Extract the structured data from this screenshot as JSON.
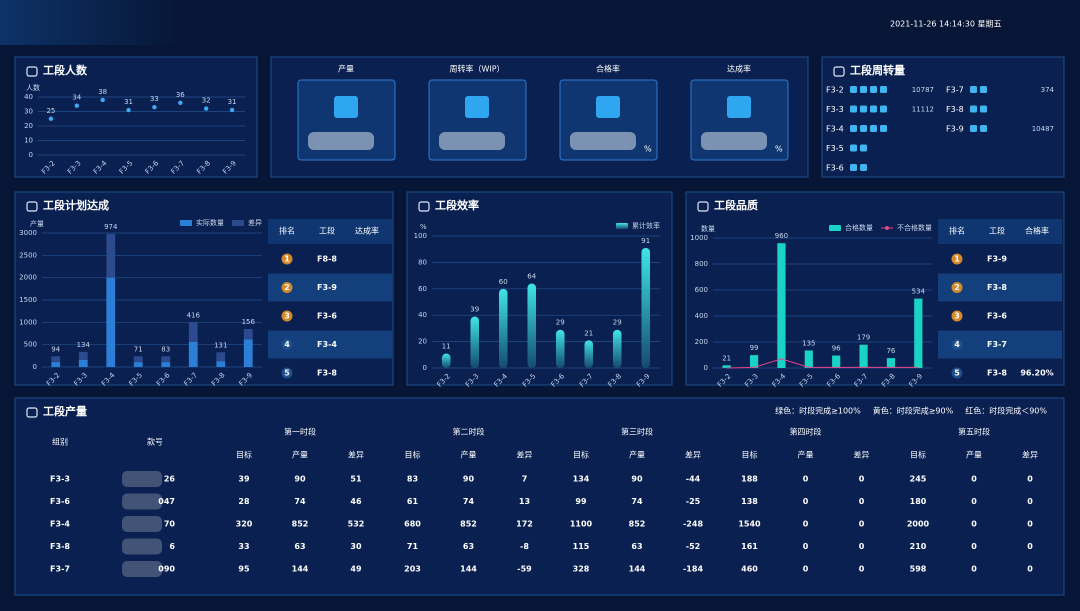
{
  "header": {
    "datetime": "2021-11-26 14:14:30 星期五"
  },
  "chart_data": [
    {
      "type": "dot",
      "title": "工段人数",
      "ylabel": "人数",
      "categories": [
        "F3-2",
        "F3-3",
        "F3-4",
        "F3-5",
        "F3-6",
        "F3-7",
        "F3-8",
        "F3-9"
      ],
      "values": [
        25,
        34,
        38,
        31,
        33,
        36,
        32,
        31
      ],
      "color": "#3fa9f5",
      "ylim": [
        0,
        40
      ],
      "yticks": [
        0,
        10,
        20,
        30,
        40
      ],
      "grid": true
    },
    {
      "type": "bar",
      "title": "工段计划达成",
      "ylabel": "产量",
      "stacked": true,
      "categories": [
        "F3-2",
        "F3-3",
        "F3-4",
        "F3-5",
        "F3-6",
        "F3-7",
        "F3-8",
        "F3-9"
      ],
      "series": [
        {
          "name": "实际数量",
          "color": "#2b7fd6",
          "values": [
            110,
            160,
            2000,
            110,
            110,
            560,
            130,
            620
          ]
        },
        {
          "name": "差异",
          "color": "#2c4b8e",
          "values": [
            130,
            180,
            980,
            130,
            130,
            440,
            200,
            230
          ]
        }
      ],
      "annotations": [
        "94",
        "134",
        "974",
        "71",
        "83",
        "416",
        "131",
        "156"
      ],
      "ylim": [
        0,
        3000
      ],
      "yticks": [
        0,
        500,
        1000,
        1500,
        2000,
        2500,
        3000
      ],
      "grid": true
    },
    {
      "type": "bar",
      "title": "工段效率",
      "ylabel": "%",
      "categories": [
        "F3-2",
        "F3-3",
        "F3-4",
        "F3-5",
        "F3-6",
        "F3-7",
        "F3-8",
        "F3-9"
      ],
      "series": [
        {
          "name": "累计效率",
          "color": "#35d6dc",
          "values": [
            11,
            39,
            60,
            64,
            29,
            21,
            29,
            91
          ]
        }
      ],
      "ylim": [
        0,
        100
      ],
      "yticks": [
        0,
        20,
        40,
        60,
        80,
        100
      ],
      "grid": true
    },
    {
      "type": "bar",
      "title": "工段品质",
      "ylabel": "数量",
      "categories": [
        "F3-2",
        "F3-3",
        "F3-4",
        "F3-5",
        "F3-6",
        "F3-7",
        "F3-8",
        "F3-9"
      ],
      "series": [
        {
          "name": "合格数量",
          "color": "#19d3c5",
          "values": [
            21,
            99,
            960,
            135,
            96,
            179,
            76,
            534
          ]
        },
        {
          "name": "不合格数量",
          "color": "#e8458b",
          "kind": "line",
          "values": [
            0,
            5,
            70,
            5,
            5,
            5,
            5,
            5
          ]
        }
      ],
      "ylim": [
        0,
        1000
      ],
      "yticks": [
        0,
        200,
        400,
        600,
        800,
        1000
      ],
      "grid": true
    }
  ],
  "kpis": [
    {
      "title": "产量"
    },
    {
      "title": "周转率（WIP）"
    },
    {
      "title": "合格率",
      "unit": "%"
    },
    {
      "title": "达成率",
      "unit": "%"
    }
  ],
  "turnover": {
    "title": "工段周转量",
    "rows": [
      {
        "label": "F3-2",
        "level": 4,
        "value": "10787"
      },
      {
        "label": "F3-3",
        "level": 4,
        "value": "11112"
      },
      {
        "label": "F3-4",
        "level": 4
      },
      {
        "label": "F3-5",
        "level": 2
      },
      {
        "label": "F3-6",
        "level": 2
      },
      {
        "label": "F3-7",
        "level": 2,
        "value": "374"
      },
      {
        "label": "F3-8",
        "level": 2
      },
      {
        "label": "F3-9",
        "level": 2,
        "value": "10487"
      }
    ]
  },
  "plan_rank": {
    "headers": [
      "排名",
      "工段",
      "达成率"
    ],
    "rows": [
      [
        "1",
        "F8-8"
      ],
      [
        "2",
        "F3-9"
      ],
      [
        "3",
        "F3-6"
      ],
      [
        "4",
        "F3-4"
      ],
      [
        "5",
        "F3-8"
      ]
    ]
  },
  "quality_rank": {
    "headers": [
      "排名",
      "工段",
      "合格率"
    ],
    "rows": [
      [
        "1",
        "F3-9"
      ],
      [
        "2",
        "F3-8"
      ],
      [
        "3",
        "F3-6"
      ],
      [
        "4",
        "F3-7"
      ],
      [
        "5",
        "F3-8",
        "96.20%"
      ]
    ]
  },
  "production": {
    "title": "工段产量",
    "legend": [
      {
        "text": "绿色：时段完成≥100%",
        "color": "#7ec83a"
      },
      {
        "text": "黄色：时段完成≥90%",
        "color": "#f2c230"
      },
      {
        "text": "红色：时段完成＜90%",
        "color": "#e8454a"
      }
    ],
    "group_header": "组别",
    "style_header": "款号",
    "periods": [
      "第一时段",
      "第二时段",
      "第三时段",
      "第四时段",
      "第五时段"
    ],
    "sub_headers": [
      "目标",
      "产量",
      "差异"
    ],
    "rows": [
      {
        "group": "F3-3",
        "style": "26",
        "cells": [
          [
            39,
            90,
            51
          ],
          [
            83,
            90,
            7
          ],
          [
            134,
            90,
            -44
          ],
          [
            188,
            0,
            0
          ],
          [
            245,
            0,
            0
          ]
        ],
        "colors": [
          "#7ec83a",
          "#7ec83a",
          "#ffffff",
          "#ffffff",
          "#ffffff"
        ]
      },
      {
        "group": "F3-6",
        "style": "047",
        "cells": [
          [
            28,
            74,
            46
          ],
          [
            61,
            74,
            13
          ],
          [
            99,
            74,
            -25
          ],
          [
            138,
            0,
            0
          ],
          [
            180,
            0,
            0
          ]
        ],
        "colors": [
          "#7ec83a",
          "#7ec83a",
          "#ffffff",
          "#ffffff",
          "#ffffff"
        ]
      },
      {
        "group": "F3-4",
        "style": "70",
        "cells": [
          [
            320,
            852,
            532
          ],
          [
            680,
            852,
            172
          ],
          [
            1100,
            852,
            -248
          ],
          [
            1540,
            0,
            0
          ],
          [
            2000,
            0,
            0
          ]
        ],
        "colors": [
          "#7ec83a",
          "#7ec83a",
          "#ffffff",
          "#ffffff",
          "#ffffff"
        ]
      },
      {
        "group": "F3-8",
        "style": "6",
        "cells": [
          [
            33,
            63,
            30
          ],
          [
            71,
            63,
            -8
          ],
          [
            115,
            63,
            -52
          ],
          [
            161,
            0,
            0
          ],
          [
            210,
            0,
            0
          ]
        ],
        "colors": [
          "#7ec83a",
          "#e8454a",
          "#ffffff",
          "#ffffff",
          "#ffffff"
        ]
      },
      {
        "group": "F3-7",
        "style": "090",
        "cells": [
          [
            95,
            144,
            49
          ],
          [
            203,
            144,
            -59
          ],
          [
            328,
            144,
            -184
          ],
          [
            460,
            0,
            0
          ],
          [
            598,
            0,
            0
          ]
        ],
        "colors": [
          "#7ec83a",
          "#e8454a",
          "#ffffff",
          "#ffffff",
          "#ffffff"
        ]
      }
    ]
  }
}
